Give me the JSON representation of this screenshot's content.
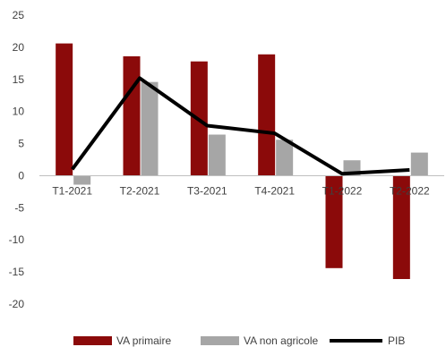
{
  "chart_data": {
    "type": "bar",
    "categories": [
      "T1-2021",
      "T2-2021",
      "T3-2021",
      "T4-2021",
      "T1-2022",
      "T2-2022"
    ],
    "series": [
      {
        "name": "VA primaire",
        "type": "bar",
        "color": "#8b0a0a",
        "values": [
          20.6,
          18.6,
          17.8,
          18.9,
          -14.4,
          -16.1
        ]
      },
      {
        "name": "VA non agricole",
        "type": "bar",
        "color": "#a6a6a6",
        "values": [
          -1.4,
          14.6,
          6.4,
          5.6,
          2.4,
          3.6
        ]
      },
      {
        "name": "PIB",
        "type": "line",
        "color": "#000000",
        "values": [
          1.0,
          15.2,
          7.8,
          6.6,
          0.3,
          0.9
        ]
      }
    ],
    "ylim": [
      -20,
      25
    ],
    "yticks": [
      "25",
      "20",
      "15",
      "10",
      "5",
      "0",
      "-5",
      "-10",
      "-15",
      "-20"
    ],
    "title": "",
    "xlabel": "",
    "ylabel": "",
    "grid": false,
    "legend_position": "bottom"
  }
}
